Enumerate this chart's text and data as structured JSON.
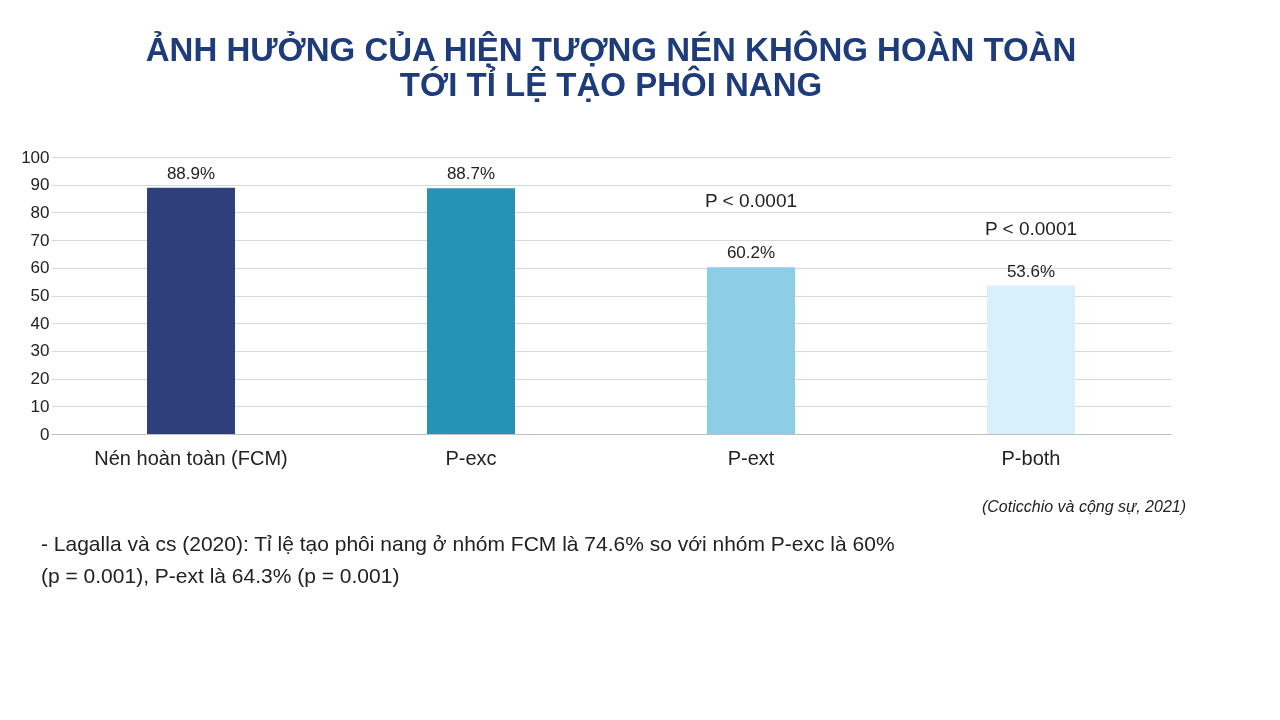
{
  "chart_data": {
    "type": "bar",
    "title": "ẢNH HƯỞNG CỦA HIỆN TƯỢNG NÉN KHÔNG HOÀN TOÀN\nTỚI TỈ LỆ TẠO PHÔI NANG",
    "categories": [
      "Nén hoàn toàn (FCM)",
      "P-exc",
      "P-ext",
      "P-both"
    ],
    "values": [
      88.9,
      88.7,
      60.2,
      53.6
    ],
    "value_labels": [
      "88.9%",
      "88.7%",
      "60.2%",
      "53.6%"
    ],
    "colors": [
      "#2e3f7c",
      "#2593b5",
      "#8ecde6",
      "#d8f0f9"
    ],
    "ylim": [
      0,
      100
    ],
    "yticks": [
      0,
      10,
      20,
      30,
      40,
      50,
      60,
      70,
      80,
      90,
      100
    ],
    "grid": "y",
    "legend": false,
    "annotations": [
      "P < 0.0001",
      "P < 0.0001",
      "(Coticchio và cộng sự, 2021)",
      "-   Lagalla và cs (2020): Tỉ lệ tạo phôi nang ở nhóm FCM là 74.6% so với nhóm  P-exc là 60%\n(p = 0.001), P-ext là 64.3% (p = 0.001)"
    ]
  }
}
